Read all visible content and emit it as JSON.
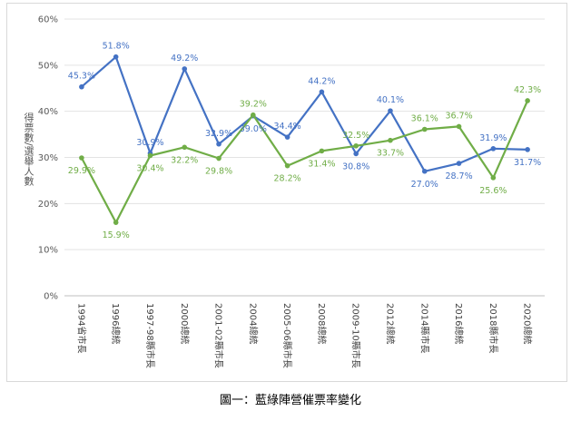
{
  "caption": "圖一：藍綠陣營催票率變化",
  "chart_data": {
    "type": "line",
    "ylabel": "得票數/選舉人數",
    "ylim": [
      0,
      60
    ],
    "yticks": [
      "0%",
      "10%",
      "20%",
      "30%",
      "40%",
      "50%",
      "60%"
    ],
    "grid": true,
    "categories": [
      "1994省市長",
      "1996總統",
      "1997-98縣市長",
      "2000總統",
      "2001-02縣市長",
      "2004總統",
      "2005-06縣市長",
      "2008總統",
      "2009-10縣市長",
      "2012總統",
      "2014縣市長",
      "2016總統",
      "2018縣市長",
      "2020總統"
    ],
    "series": [
      {
        "color": "#4472c4",
        "values": [
          45.3,
          51.8,
          30.9,
          49.2,
          32.9,
          39.0,
          34.4,
          44.2,
          30.8,
          40.1,
          27.0,
          28.7,
          31.9,
          31.7
        ],
        "labels": [
          "45.3%",
          "51.8%",
          "30.9%",
          "49.2%",
          "32.9%",
          "39.0%",
          "34.4%",
          "44.2%",
          "30.8%",
          "40.1%",
          "27.0%",
          "28.7%",
          "31.9%",
          "31.7%"
        ]
      },
      {
        "color": "#70ad47",
        "values": [
          29.9,
          15.9,
          30.4,
          32.2,
          29.8,
          39.2,
          28.2,
          31.4,
          32.5,
          33.7,
          36.1,
          36.7,
          25.6,
          42.3
        ],
        "labels": [
          "29.9%",
          "15.9%",
          "30.4%",
          "32.2%",
          "29.8%",
          "39.2%",
          "28.2%",
          "31.4%",
          "32.5%",
          "33.7%",
          "36.1%",
          "36.7%",
          "25.6%",
          "42.3%"
        ]
      }
    ]
  }
}
